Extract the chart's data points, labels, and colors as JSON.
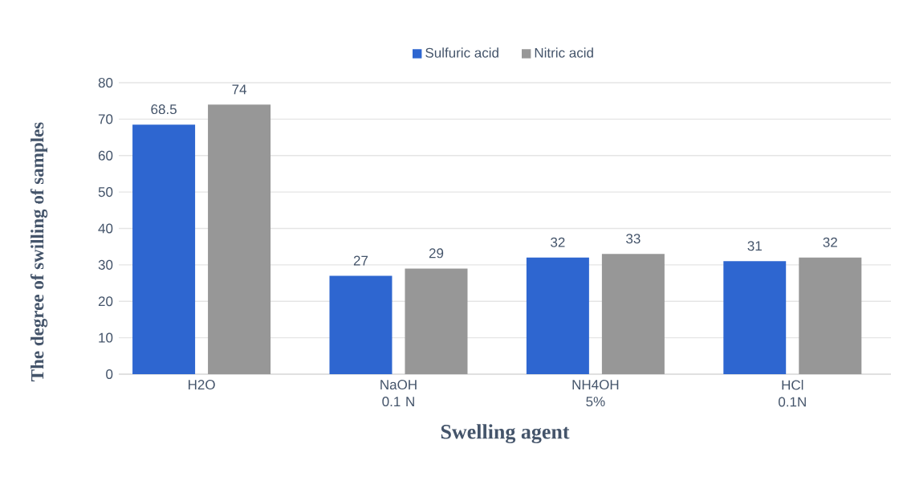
{
  "chart_data": {
    "type": "bar",
    "xlabel": "Swelling agent",
    "ylabel": "The degree of swilling of samples",
    "categories": [
      "H2O",
      "NaOH 0.1 N",
      "NH4OH 5%",
      "HCl 0.1N"
    ],
    "series": [
      {
        "name": "Sulfuric acid",
        "color": "#2e66d0",
        "values": [
          68.5,
          27,
          32,
          31
        ]
      },
      {
        "name": "Nitric acid",
        "color": "#979797",
        "values": [
          74,
          29,
          33,
          32
        ]
      }
    ],
    "ylim": [
      0,
      80
    ],
    "yticks": [
      0,
      10,
      20,
      30,
      40,
      50,
      60,
      70,
      80
    ],
    "grid": "y",
    "legend": "top",
    "data_labels": true
  }
}
